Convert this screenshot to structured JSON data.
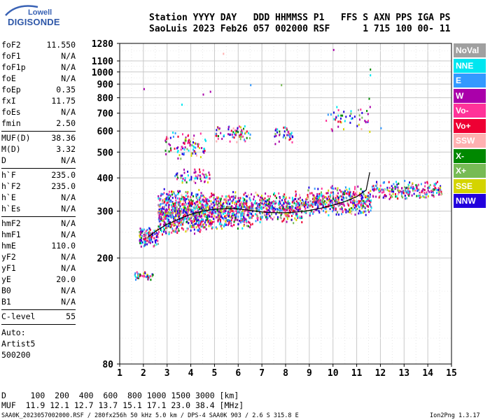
{
  "logo": {
    "top": "Lowell",
    "brand": "DIGISONDE"
  },
  "header": {
    "labels_line": "Station YYYY DAY   DDD HHMMSS P1   FFS S AXN PPS IGA PS",
    "values_line": "SaoLuis 2023 Feb26 057 002000 RSF      1 715 100 00- 11"
  },
  "params_group1": [
    {
      "name": "foF2",
      "value": "11.550"
    },
    {
      "name": "foF1",
      "value": "N/A"
    },
    {
      "name": "foF1p",
      "value": "N/A"
    },
    {
      "name": "foE",
      "value": "N/A"
    },
    {
      "name": "foEp",
      "value": "0.35"
    },
    {
      "name": "fxI",
      "value": "11.75"
    },
    {
      "name": "foEs",
      "value": "N/A"
    },
    {
      "name": "fmin",
      "value": "2.50"
    }
  ],
  "params_group2": [
    {
      "name": "MUF(D)",
      "value": "38.36"
    },
    {
      "name": "M(D)",
      "value": "3.32"
    },
    {
      "name": "D",
      "value": "N/A"
    }
  ],
  "params_group3": [
    {
      "name": "h`F",
      "value": "235.0"
    },
    {
      "name": "h`F2",
      "value": "235.0"
    },
    {
      "name": "h`E",
      "value": "N/A"
    },
    {
      "name": "h`Es",
      "value": "N/A"
    }
  ],
  "params_group4": [
    {
      "name": "hmF2",
      "value": "N/A"
    },
    {
      "name": "hmF1",
      "value": "N/A"
    },
    {
      "name": "hmE",
      "value": "110.0"
    },
    {
      "name": "yF2",
      "value": "N/A"
    },
    {
      "name": "yF1",
      "value": "N/A"
    },
    {
      "name": "yE",
      "value": "20.0"
    },
    {
      "name": "B0",
      "value": "N/A"
    },
    {
      "name": "B1",
      "value": "N/A"
    }
  ],
  "clevel": {
    "name": "C-level",
    "value": "55"
  },
  "auto": {
    "line1": "Auto:",
    "line2": "Artist5",
    "line3": "500200"
  },
  "legend": [
    {
      "label": "NoVal",
      "color": "#a0a0a0"
    },
    {
      "label": "NNE",
      "color": "#00e6f0"
    },
    {
      "label": "E",
      "color": "#3399ff"
    },
    {
      "label": "W",
      "color": "#aa00aa"
    },
    {
      "label": "Vo-",
      "color": "#ff3399"
    },
    {
      "label": "Vo+",
      "color": "#ee0033"
    },
    {
      "label": "SSW",
      "color": "#ffb0b0"
    },
    {
      "label": "X-",
      "color": "#008800"
    },
    {
      "label": "X+",
      "color": "#77bb55"
    },
    {
      "label": "SSE",
      "color": "#d4d400"
    },
    {
      "label": "NNW",
      "color": "#2200dd"
    }
  ],
  "footer": {
    "d_line": "D     100  200  400  600  800 1000 1500 3000 [km]",
    "muf_line": "MUF  11.9 12.1 12.7 13.7 15.1 17.1 23.0 38.4 [MHz]",
    "file_line": "SAA0K_2023057002000.RSF / 280fx256h 50 kHz 5.0 km / DPS-4 SAA0K 903 / 2.6 S 315.8 E",
    "version": "Ion2Png 1.3.17"
  },
  "chart_data": {
    "type": "scatter",
    "xlim": [
      1,
      15
    ],
    "x_ticks": [
      "1",
      "2",
      "3",
      "4",
      "5",
      "6",
      "7",
      "8",
      "9",
      "10",
      "11",
      "12",
      "13",
      "14",
      "15"
    ],
    "y_scale": "log",
    "ylim": [
      80,
      1280
    ],
    "y_ticks": [
      "80",
      "200",
      "300",
      "400",
      "500",
      "600",
      "700",
      "800",
      "900",
      "1000",
      "1100",
      "1280"
    ],
    "grid": true,
    "trace": {
      "name": "",
      "x": [
        2.2,
        2.6,
        3.0,
        3.5,
        4.0,
        4.5,
        5.0,
        5.5,
        6.0,
        6.5,
        7.0,
        7.5,
        8.0,
        8.5,
        9.0,
        9.5,
        10.0,
        10.5,
        11.0,
        11.4,
        11.55
      ],
      "y": [
        240,
        255,
        268,
        280,
        292,
        300,
        305,
        307,
        306,
        302,
        298,
        296,
        296,
        298,
        302,
        308,
        316,
        326,
        340,
        360,
        420
      ]
    },
    "clusters": [
      {
        "x": [
          1.8,
          2.6
        ],
        "y": [
          220,
          265
        ],
        "n": 120
      },
      {
        "x": [
          2.6,
          4.5
        ],
        "y": [
          245,
          370
        ],
        "n": 650
      },
      {
        "x": [
          4.5,
          6.6
        ],
        "y": [
          255,
          360
        ],
        "n": 520
      },
      {
        "x": [
          6.6,
          8.8
        ],
        "y": [
          270,
          360
        ],
        "n": 360
      },
      {
        "x": [
          8.8,
          11.6
        ],
        "y": [
          285,
          380
        ],
        "n": 420
      },
      {
        "x": [
          11.6,
          14.6
        ],
        "y": [
          330,
          395
        ],
        "n": 220
      },
      {
        "x": [
          2.9,
          4.6
        ],
        "y": [
          470,
          620
        ],
        "n": 90
      },
      {
        "x": [
          5.0,
          6.5
        ],
        "y": [
          540,
          640
        ],
        "n": 70
      },
      {
        "x": [
          7.5,
          8.3
        ],
        "y": [
          530,
          640
        ],
        "n": 40
      },
      {
        "x": [
          9.6,
          11.6
        ],
        "y": [
          590,
          760
        ],
        "n": 50
      },
      {
        "x": [
          1.6,
          2.4
        ],
        "y": [
          165,
          180
        ],
        "n": 40
      },
      {
        "x": [
          3.3,
          4.8
        ],
        "y": [
          380,
          440
        ],
        "n": 60
      }
    ]
  }
}
